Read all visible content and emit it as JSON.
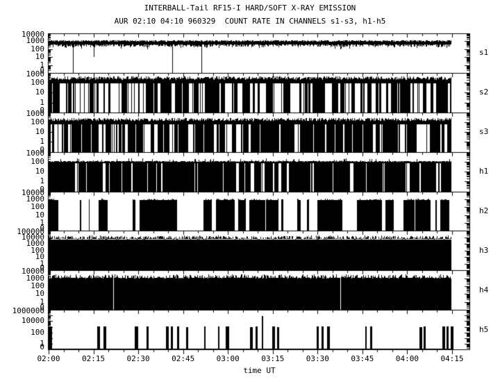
{
  "colors": {
    "foreground": "#000000",
    "background": "#ffffff"
  },
  "header": {
    "title": "INTERBALL-Tail RF15-I HARD/SOFT X-RAY EMISSION",
    "subtitle": "AUR 02:10 04:10 960329  COUNT RATE IN CHANNELS s1-s3, h1-h5"
  },
  "chart_data": {
    "type": "line",
    "title": "INTERBALL-Tail RF15-I HARD/SOFT X-RAY EMISSION",
    "subtitle": "AUR 02:10 04:10 960329  COUNT RATE IN CHANNELS s1-s3, h1-h5",
    "xlabel": "time UT",
    "x_tick_labels": [
      "02:00",
      "02:15",
      "02:30",
      "02:45",
      "03:00",
      "03:15",
      "03:30",
      "03:45",
      "04:00",
      "04:15"
    ],
    "x_minor_ticks_per_major": 3,
    "grid": false,
    "legend_position": "right-of-each-panel",
    "yscale": "log-with-zero-floor",
    "panels": [
      {
        "label": "s1",
        "top_exp": 4,
        "y_tick_labels": [
          [
            "10000",
            4
          ],
          [
            "1000",
            3
          ],
          [
            "100",
            2
          ],
          [
            "10",
            1
          ],
          [
            "1",
            0
          ],
          [
            "0",
            "z"
          ]
        ],
        "description": "continuous noisy band ~300-1300 counts with isolated dropouts to 0",
        "model": {
          "kind": "noisy_band",
          "seed": 7,
          "band_top_log": 2.95,
          "band_top_jitter": 0.2,
          "band_bot_log": 2.6,
          "band_bot_jitter": 0.35,
          "tail_prob": 0.12,
          "tail_extra": 0.35,
          "dropouts": [
            0.06,
            0.307,
            0.379
          ],
          "down_spikes": [
            [
              0.112,
              1.0
            ]
          ]
        }
      },
      {
        "label": "s2",
        "top_exp": 3,
        "y_tick_labels": [
          [
            "1000",
            3
          ],
          [
            "100",
            2
          ],
          [
            "10",
            1
          ],
          [
            "1",
            0
          ],
          [
            "0",
            "z"
          ]
        ],
        "description": "top band ~100-400 counts, dense barcode of drops to 0",
        "model": {
          "kind": "barcode",
          "seed": 13,
          "band_top_log": 2.3,
          "band_top_jitter": 0.35,
          "band_bot_log": 1.95,
          "stay_black": 0.8,
          "stay_white": 0.74,
          "spike_prob": 0,
          "spike_extra": 0
        }
      },
      {
        "label": "s3",
        "top_exp": 3,
        "y_tick_labels": [
          [
            "1000",
            3
          ],
          [
            "100",
            2
          ],
          [
            "10",
            1
          ],
          [
            "1",
            0
          ],
          [
            "0",
            "z"
          ]
        ],
        "description": "top band ~100-250 counts, barcode drops; sparser left half",
        "model": {
          "kind": "barcode",
          "seed": 21,
          "band_top_log": 2.1,
          "band_top_jitter": 0.35,
          "band_bot_log": 1.8,
          "spike_prob": 0,
          "spike_extra": 0,
          "zones": [
            {
              "until": 0.5,
              "stay_black": 0.8,
              "stay_white": 0.66
            },
            {
              "until": 1.01,
              "stay_black": 0.91,
              "stay_white": 0.58
            }
          ]
        }
      },
      {
        "label": "h1",
        "top_exp": 3,
        "y_tick_labels": [
          [
            "1000",
            3
          ],
          [
            "100",
            2
          ],
          [
            "10",
            1
          ],
          [
            "1",
            0
          ],
          [
            "0",
            "z"
          ]
        ],
        "description": "flat top near 100 counts, nearly solid with thin white gaps",
        "model": {
          "kind": "barcode",
          "seed": 34,
          "band_top_log": 2.0,
          "band_top_jitter": 0.07,
          "band_bot_log": 1.82,
          "stay_black": 0.93,
          "stay_white": 0.55,
          "spike_prob": 0.12,
          "spike_extra": 0.3
        }
      },
      {
        "label": "h2",
        "top_exp": 4,
        "y_tick_labels": [
          [
            "10000",
            4
          ],
          [
            "1000",
            3
          ],
          [
            "100",
            2
          ],
          [
            "10",
            1
          ],
          [
            "1",
            0
          ],
          [
            "0",
            "z"
          ]
        ],
        "description": "wide on/off blocks, flat tops ~800-1000 counts",
        "model": {
          "kind": "blocks",
          "seed": 55,
          "top_log": 2.9,
          "top_jitter": 0.06,
          "spike_prob": 0.12,
          "spike_extra": 0.12,
          "stay_black": 0.94,
          "stay_white": 0.92
        }
      },
      {
        "label": "h3",
        "top_exp": 5,
        "y_tick_labels": [
          [
            "100000",
            5
          ],
          [
            "10000",
            4
          ],
          [
            "1000",
            3
          ],
          [
            "100",
            2
          ],
          [
            "10",
            1
          ],
          [
            "1",
            0
          ],
          [
            "0",
            "z"
          ]
        ],
        "description": "solid filled to ~4000-5000 counts with spiky fringe to ~15000",
        "model": {
          "kind": "solid",
          "seed": 89,
          "top_log": 3.62,
          "top_jitter": 0.1,
          "fringe_gap": 0.1,
          "fringe_h": 0.5,
          "fringe_prob": 0.78,
          "cracks": []
        }
      },
      {
        "label": "h4",
        "top_exp": 4,
        "y_tick_labels": [
          [
            "10000",
            4
          ],
          [
            "1000",
            3
          ],
          [
            "100",
            2
          ],
          [
            "10",
            1
          ],
          [
            "1",
            0
          ],
          [
            "0",
            "z"
          ]
        ],
        "description": "solid filled to ~1100 counts, dense fringe to ~3000, two thin gaps",
        "model": {
          "kind": "solid",
          "seed": 144,
          "top_log": 3.0,
          "top_jitter": 0.06,
          "fringe_gap": 0.0,
          "fringe_h": 0.45,
          "fringe_prob": 0.55,
          "cracks": [
            0.16,
            0.724
          ]
        }
      },
      {
        "label": "h5",
        "top_exp": 6,
        "y_tick_labels": [
          [
            "1000000",
            6
          ],
          [
            "10000",
            4
          ],
          [
            "100",
            2
          ],
          [
            "1",
            0
          ],
          [
            "0",
            "z"
          ]
        ],
        "description": "baseline at 0 with intermittent bursts to ~1000-1500 counts and one tall spike to ~80000",
        "model": {
          "kind": "bursts",
          "seed": 233,
          "burst_top_log": 3.05,
          "burst_jitter": 0.07,
          "bursts": [
            [
              0.0,
              5
            ],
            [
              0.121,
              4
            ],
            [
              0.136,
              4
            ],
            [
              0.214,
              5
            ],
            [
              0.243,
              3
            ],
            [
              0.291,
              4
            ],
            [
              0.303,
              3
            ],
            [
              0.319,
              3
            ],
            [
              0.341,
              3
            ],
            [
              0.386,
              2
            ],
            [
              0.421,
              2
            ],
            [
              0.44,
              5
            ],
            [
              0.5,
              4
            ],
            [
              0.514,
              3
            ],
            [
              0.555,
              4
            ],
            [
              0.567,
              3
            ],
            [
              0.666,
              3
            ],
            [
              0.678,
              3
            ],
            [
              0.691,
              4
            ],
            [
              0.786,
              2
            ],
            [
              0.798,
              3
            ],
            [
              0.921,
              4
            ],
            [
              0.931,
              3
            ],
            [
              0.978,
              4
            ],
            [
              0.988,
              3
            ],
            [
              0.998,
              4
            ]
          ],
          "tall_spike": {
            "x_frac": 0.529,
            "top_log": 4.9,
            "width": 2
          }
        }
      }
    ]
  }
}
